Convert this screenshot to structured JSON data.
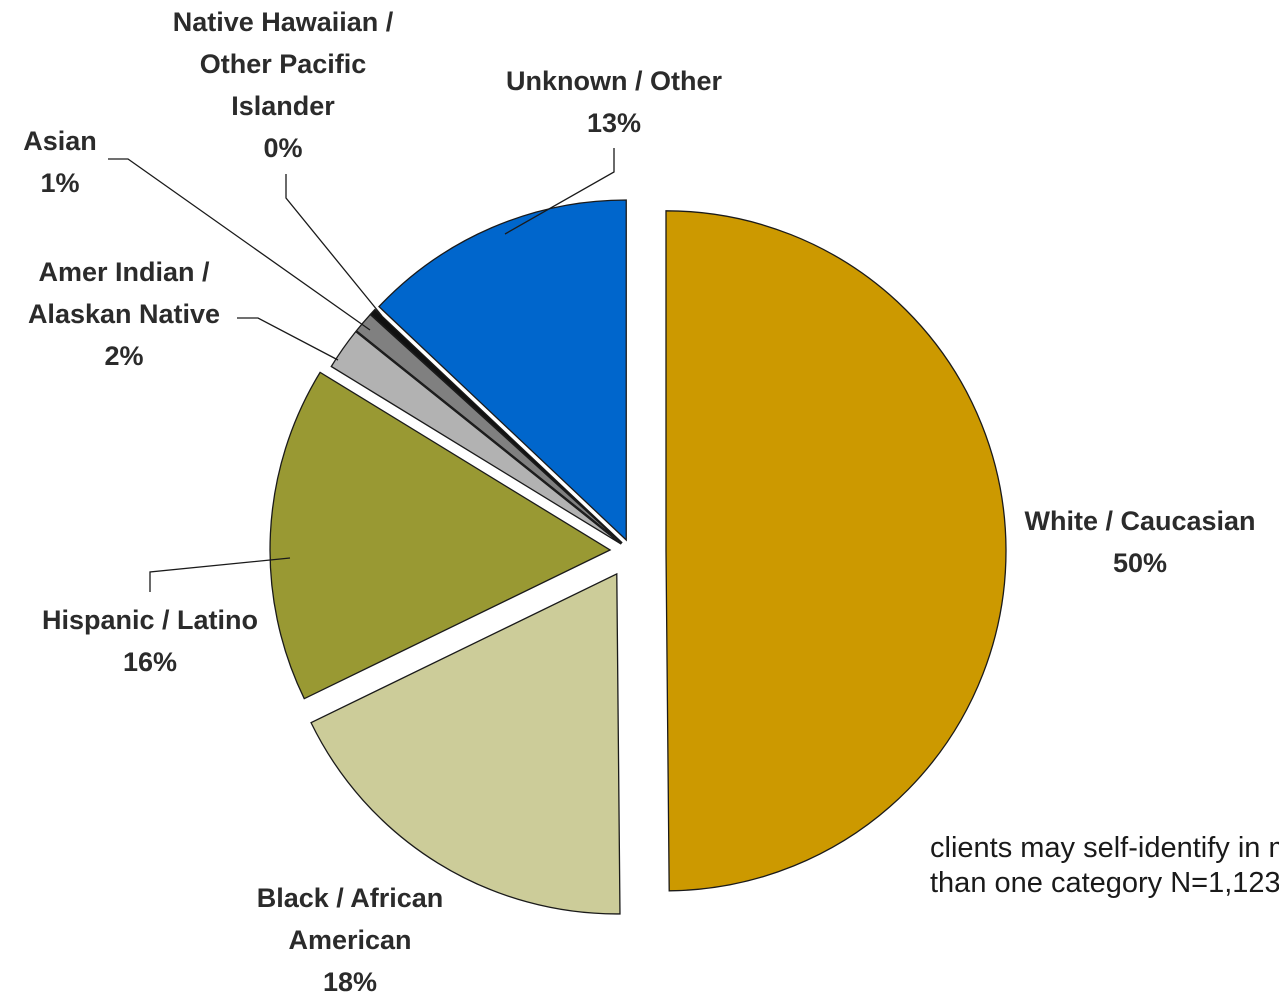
{
  "chart_data": {
    "type": "pie",
    "slices": [
      {
        "name": "White / Caucasian",
        "value": 50,
        "label_lines": [
          "White / Caucasian"
        ],
        "pct_text": "50%",
        "color": "#cc9900"
      },
      {
        "name": "Black / African American",
        "value": 18,
        "label_lines": [
          "Black / African",
          "American"
        ],
        "pct_text": "18%",
        "color": "#cccc99"
      },
      {
        "name": "Hispanic / Latino",
        "value": 16,
        "label_lines": [
          "Hispanic / Latino"
        ],
        "pct_text": "16%",
        "color": "#999933"
      },
      {
        "name": "Amer Indian / Alaskan Native",
        "value": 2,
        "label_lines": [
          "Amer Indian /",
          "Alaskan Native"
        ],
        "pct_text": "2%",
        "color": "#b2b2b2"
      },
      {
        "name": "Asian",
        "value": 1,
        "label_lines": [
          "Asian"
        ],
        "pct_text": "1%",
        "color": "#808080"
      },
      {
        "name": "Native Hawaiian / Other Pacific Islander",
        "value": 0.3,
        "label_lines": [
          "Native Hawaiian /",
          "Other Pacific",
          "Islander"
        ],
        "pct_text": "0%",
        "color": "#111111"
      },
      {
        "name": "Unknown / Other",
        "value": 13,
        "label_lines": [
          "Unknown / Other"
        ],
        "pct_text": "13%",
        "color": "#0066cc"
      }
    ],
    "legend": "none"
  },
  "note": {
    "lines": [
      "clients may self-identify in more",
      "than one category N=1,123"
    ]
  }
}
